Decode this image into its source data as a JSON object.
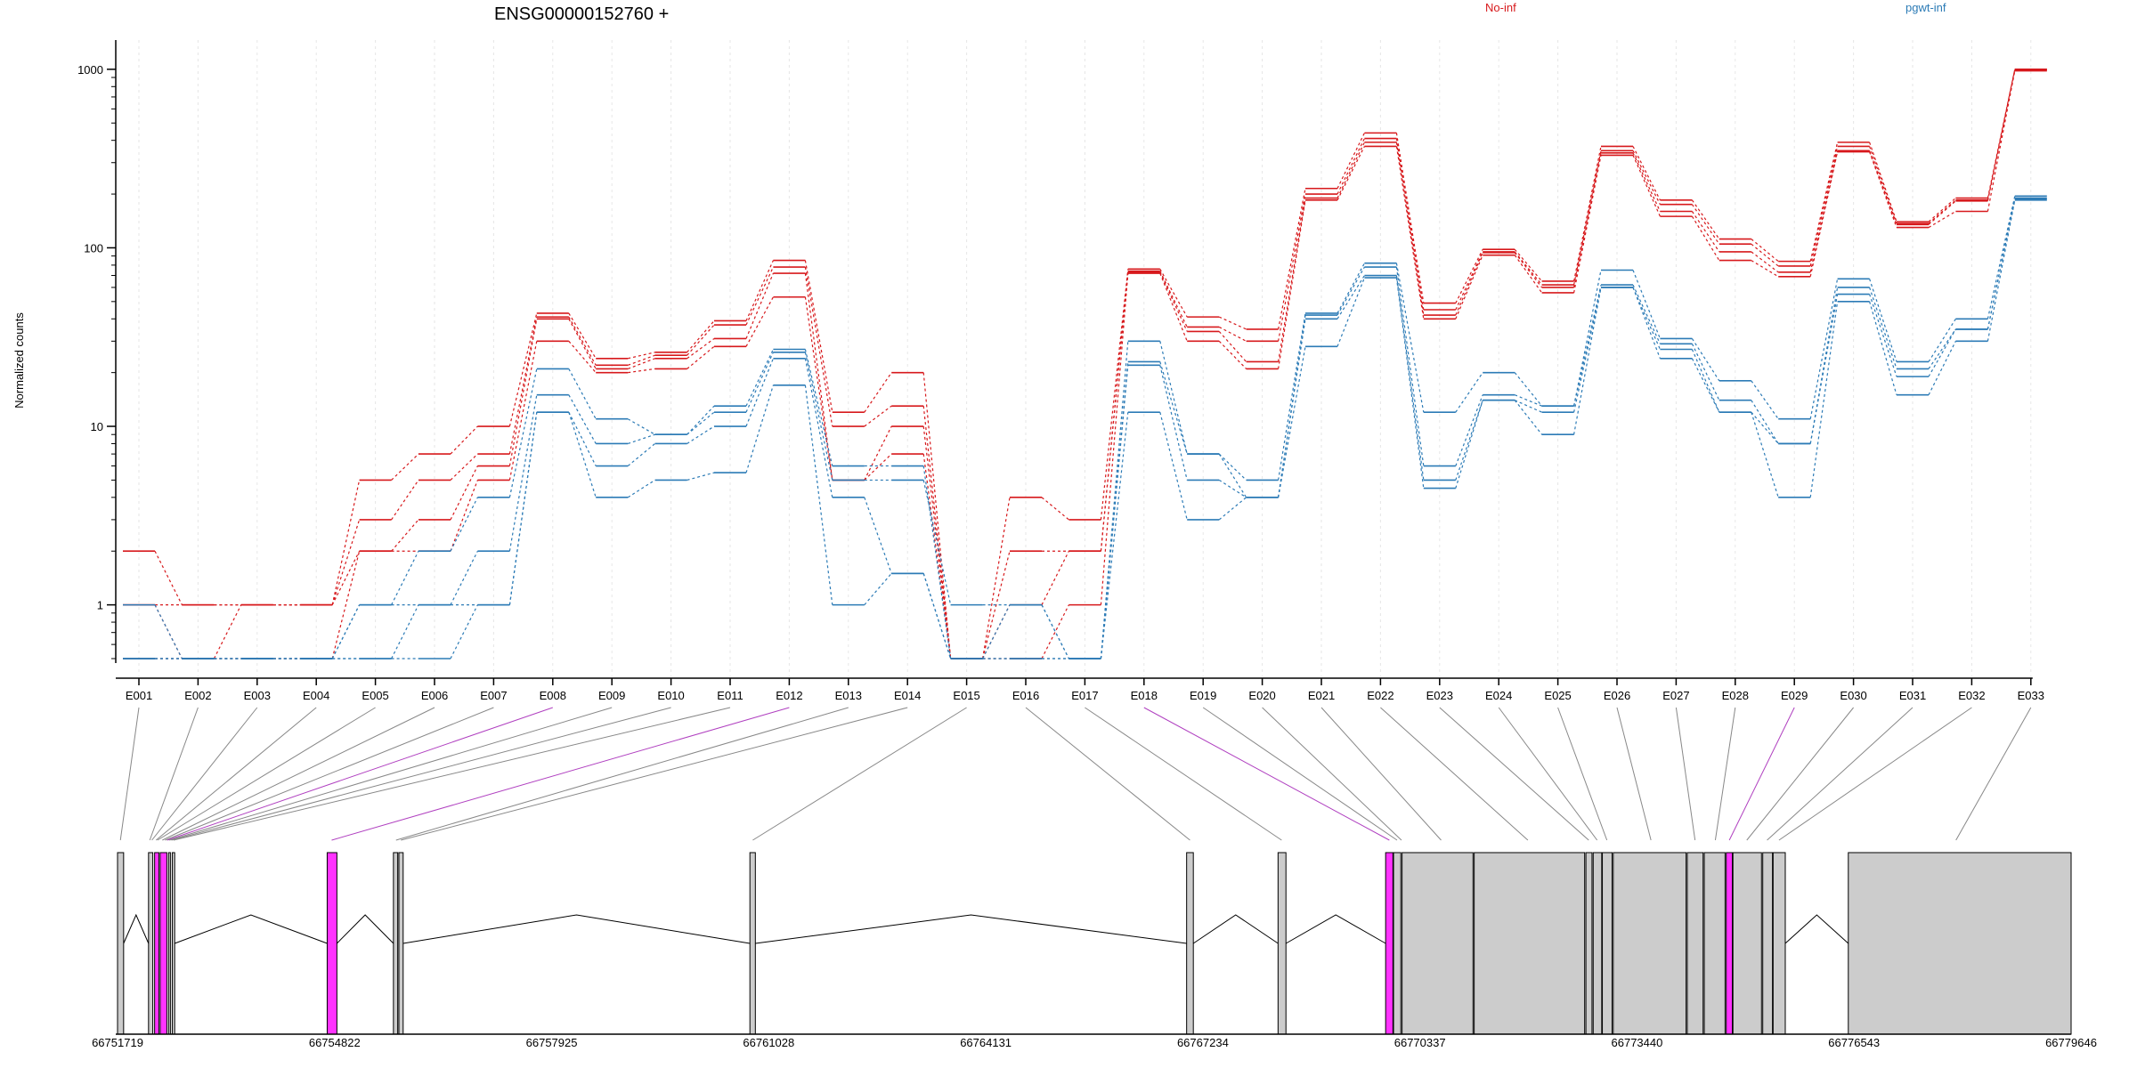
{
  "title": "ENSG00000152760 +",
  "legend": [
    {
      "label": "No-inf",
      "color": "#d7191c"
    },
    {
      "label": "pgwt-inf",
      "color": "#2c7bb6"
    }
  ],
  "colors": {
    "highlight": "#ff33ff",
    "exon": "#cccccc",
    "axis": "#000000"
  },
  "chart_data": [
    {
      "type": "line",
      "title": "ENSG00000152760 +",
      "ylabel": "Normalized counts",
      "xlabel": "",
      "yscale": "log",
      "ylim": [
        0.5,
        1300
      ],
      "yticks": [
        1,
        10,
        100,
        1000
      ],
      "grid": true,
      "legend_position": "top",
      "categories": [
        "E001",
        "E002",
        "E003",
        "E004",
        "E005",
        "E006",
        "E007",
        "E008",
        "E009",
        "E010",
        "E011",
        "E012",
        "E013",
        "E014",
        "E015",
        "E016",
        "E017",
        "E018",
        "E019",
        "E020",
        "E021",
        "E022",
        "E023",
        "E024",
        "E025",
        "E026",
        "E027",
        "E028",
        "E029",
        "E030",
        "E031",
        "E032",
        "E033"
      ],
      "series": [
        {
          "group": "No-inf",
          "values": [
            2.0,
            1.0,
            1.0,
            1.0,
            5.0,
            7.0,
            10.0,
            43,
            24,
            26,
            39,
            85,
            12,
            20,
            0.5,
            4.0,
            3.0,
            76,
            41,
            35,
            215,
            440,
            49,
            98,
            65,
            370,
            185,
            112,
            84,
            390,
            140,
            190,
            1000
          ]
        },
        {
          "group": "No-inf",
          "values": [
            1.0,
            1.0,
            1.0,
            1.0,
            3.0,
            5.0,
            7.0,
            41,
            22,
            25,
            37,
            78,
            10,
            13,
            0.5,
            2.0,
            2.0,
            74,
            36,
            30,
            200,
            410,
            45,
            95,
            62,
            350,
            175,
            105,
            79,
            370,
            137,
            185,
            1000
          ]
        },
        {
          "group": "No-inf",
          "values": [
            1.0,
            0.5,
            1.0,
            1.0,
            2.0,
            3.0,
            6.0,
            40,
            21,
            24,
            31,
            72,
            5,
            10,
            0.5,
            1.0,
            2.0,
            73,
            34,
            23,
            190,
            390,
            42,
            94,
            60,
            340,
            160,
            95,
            73,
            350,
            135,
            183,
            990
          ]
        },
        {
          "group": "No-inf",
          "values": [
            0.5,
            0.5,
            0.5,
            0.5,
            2.0,
            2.0,
            5.0,
            30,
            20,
            21,
            28,
            53,
            5,
            7,
            0.5,
            0.5,
            1.0,
            72,
            30,
            21,
            185,
            370,
            40,
            91,
            56,
            330,
            150,
            85,
            69,
            345,
            130,
            160,
            980
          ]
        },
        {
          "group": "pgwt-inf",
          "values": [
            1.0,
            0.5,
            0.5,
            0.5,
            1.0,
            2.0,
            4.0,
            21,
            11,
            9,
            13,
            27,
            6,
            6,
            0.5,
            1.0,
            0.5,
            30,
            7,
            5,
            43,
            82,
            12,
            20,
            13,
            75,
            31,
            18,
            11,
            67,
            23,
            40,
            195
          ]
        },
        {
          "group": "pgwt-inf",
          "values": [
            0.5,
            0.5,
            0.5,
            0.5,
            1.0,
            1.0,
            2.0,
            15,
            8,
            9,
            12,
            26,
            5,
            5,
            1.0,
            1.0,
            0.5,
            23,
            7,
            4,
            42,
            78,
            6,
            15,
            13,
            62,
            29,
            14,
            8,
            60,
            21,
            35,
            190
          ]
        },
        {
          "group": "pgwt-inf",
          "values": [
            0.5,
            0.5,
            0.5,
            0.5,
            0.5,
            1.0,
            1.0,
            12,
            6,
            8,
            10,
            24,
            4,
            1.5,
            0.5,
            0.5,
            0.5,
            22,
            5,
            4,
            40,
            70,
            5,
            14,
            12,
            60,
            27,
            12,
            8,
            55,
            19,
            35,
            188
          ]
        },
        {
          "group": "pgwt-inf",
          "values": [
            0.5,
            0.5,
            0.5,
            0.5,
            0.5,
            0.5,
            1.0,
            12,
            4,
            5,
            5.5,
            17,
            1,
            1.5,
            0.5,
            0.5,
            0.5,
            12,
            3,
            4,
            28,
            68,
            4.5,
            14,
            9,
            60,
            24,
            12,
            4,
            50,
            15,
            30,
            185
          ]
        }
      ]
    },
    {
      "type": "diagram",
      "title": "",
      "xticks": [
        "66751719",
        "66754822",
        "66757925",
        "66761028",
        "66764131",
        "66767234",
        "66770337",
        "66773440",
        "66776543",
        "66779646"
      ],
      "xlim": [
        66751719,
        66779646
      ],
      "exons": [
        {
          "start": 66751719,
          "end": 66751806,
          "highlight": false
        },
        {
          "start": 66752162,
          "end": 66752223,
          "highlight": false
        },
        {
          "start": 66752249,
          "end": 66752310,
          "highlight": true
        },
        {
          "start": 66752329,
          "end": 66752424,
          "highlight": true
        },
        {
          "start": 66752449,
          "end": 66752475,
          "highlight": false
        },
        {
          "start": 66752501,
          "end": 66752536,
          "highlight": false
        },
        {
          "start": 66754716,
          "end": 66754855,
          "highlight": true
        },
        {
          "start": 66755663,
          "end": 66755724,
          "highlight": false
        },
        {
          "start": 66755741,
          "end": 66755802,
          "highlight": false
        },
        {
          "start": 66760759,
          "end": 66760837,
          "highlight": false
        },
        {
          "start": 66767002,
          "end": 66767098,
          "highlight": false
        },
        {
          "start": 66768309,
          "end": 66768422,
          "highlight": false
        },
        {
          "start": 66769847,
          "end": 66769951,
          "highlight": true
        },
        {
          "start": 66769960,
          "end": 66770064,
          "highlight": false
        },
        {
          "start": 66770082,
          "end": 66771096,
          "highlight": false
        },
        {
          "start": 66771113,
          "end": 66772692,
          "highlight": false
        },
        {
          "start": 66772710,
          "end": 66772797,
          "highlight": false
        },
        {
          "start": 66772814,
          "end": 66772936,
          "highlight": false
        },
        {
          "start": 66772945,
          "end": 66773084,
          "highlight": false
        },
        {
          "start": 66773101,
          "end": 66774142,
          "highlight": false
        },
        {
          "start": 66774159,
          "end": 66774385,
          "highlight": false
        },
        {
          "start": 66774402,
          "end": 66774699,
          "highlight": false
        },
        {
          "start": 66774716,
          "end": 66774803,
          "highlight": true
        },
        {
          "start": 66774812,
          "end": 66775220,
          "highlight": false
        },
        {
          "start": 66775238,
          "end": 66775377,
          "highlight": false
        },
        {
          "start": 66775386,
          "end": 66775560,
          "highlight": false
        },
        {
          "start": 66776461,
          "end": 66779646,
          "highlight": false
        }
      ],
      "introns": [
        [
          66751806,
          66752162
        ],
        [
          66752536,
          66754716
        ],
        [
          66754855,
          66755663
        ],
        [
          66755802,
          66760759
        ],
        [
          66760837,
          66767002
        ],
        [
          66767098,
          66768309
        ],
        [
          66768422,
          66769847
        ],
        [
          66775560,
          66776461
        ]
      ],
      "links": [
        {
          "bin": "E001",
          "pos": 66751760,
          "highlight": false
        },
        {
          "bin": "E002",
          "pos": 66752180,
          "highlight": false
        },
        {
          "bin": "E003",
          "pos": 66752210,
          "highlight": false
        },
        {
          "bin": "E004",
          "pos": 66752270,
          "highlight": false
        },
        {
          "bin": "E005",
          "pos": 66752290,
          "highlight": false
        },
        {
          "bin": "E006",
          "pos": 66752360,
          "highlight": false
        },
        {
          "bin": "E007",
          "pos": 66752400,
          "highlight": false
        },
        {
          "bin": "E008",
          "pos": 66752430,
          "highlight": true
        },
        {
          "bin": "E009",
          "pos": 66752460,
          "highlight": false
        },
        {
          "bin": "E010",
          "pos": 66752490,
          "highlight": false
        },
        {
          "bin": "E011",
          "pos": 66752520,
          "highlight": false
        },
        {
          "bin": "E012",
          "pos": 66754780,
          "highlight": true
        },
        {
          "bin": "E013",
          "pos": 66755700,
          "highlight": false
        },
        {
          "bin": "E014",
          "pos": 66755770,
          "highlight": false
        },
        {
          "bin": "E015",
          "pos": 66760800,
          "highlight": false
        },
        {
          "bin": "E016",
          "pos": 66767050,
          "highlight": false
        },
        {
          "bin": "E017",
          "pos": 66768360,
          "highlight": false
        },
        {
          "bin": "E018",
          "pos": 66769900,
          "highlight": true
        },
        {
          "bin": "E019",
          "pos": 66770010,
          "highlight": false
        },
        {
          "bin": "E020",
          "pos": 66770073,
          "highlight": false
        },
        {
          "bin": "E021",
          "pos": 66770640,
          "highlight": false
        },
        {
          "bin": "E022",
          "pos": 66771880,
          "highlight": false
        },
        {
          "bin": "E023",
          "pos": 66772750,
          "highlight": false
        },
        {
          "bin": "E024",
          "pos": 66772870,
          "highlight": false
        },
        {
          "bin": "E025",
          "pos": 66773010,
          "highlight": false
        },
        {
          "bin": "E026",
          "pos": 66773640,
          "highlight": false
        },
        {
          "bin": "E027",
          "pos": 66774270,
          "highlight": false
        },
        {
          "bin": "E028",
          "pos": 66774560,
          "highlight": false
        },
        {
          "bin": "E029",
          "pos": 66774760,
          "highlight": true
        },
        {
          "bin": "E030",
          "pos": 66775010,
          "highlight": false
        },
        {
          "bin": "E031",
          "pos": 66775300,
          "highlight": false
        },
        {
          "bin": "E032",
          "pos": 66775470,
          "highlight": false
        },
        {
          "bin": "E033",
          "pos": 66778000,
          "highlight": false
        }
      ]
    }
  ]
}
